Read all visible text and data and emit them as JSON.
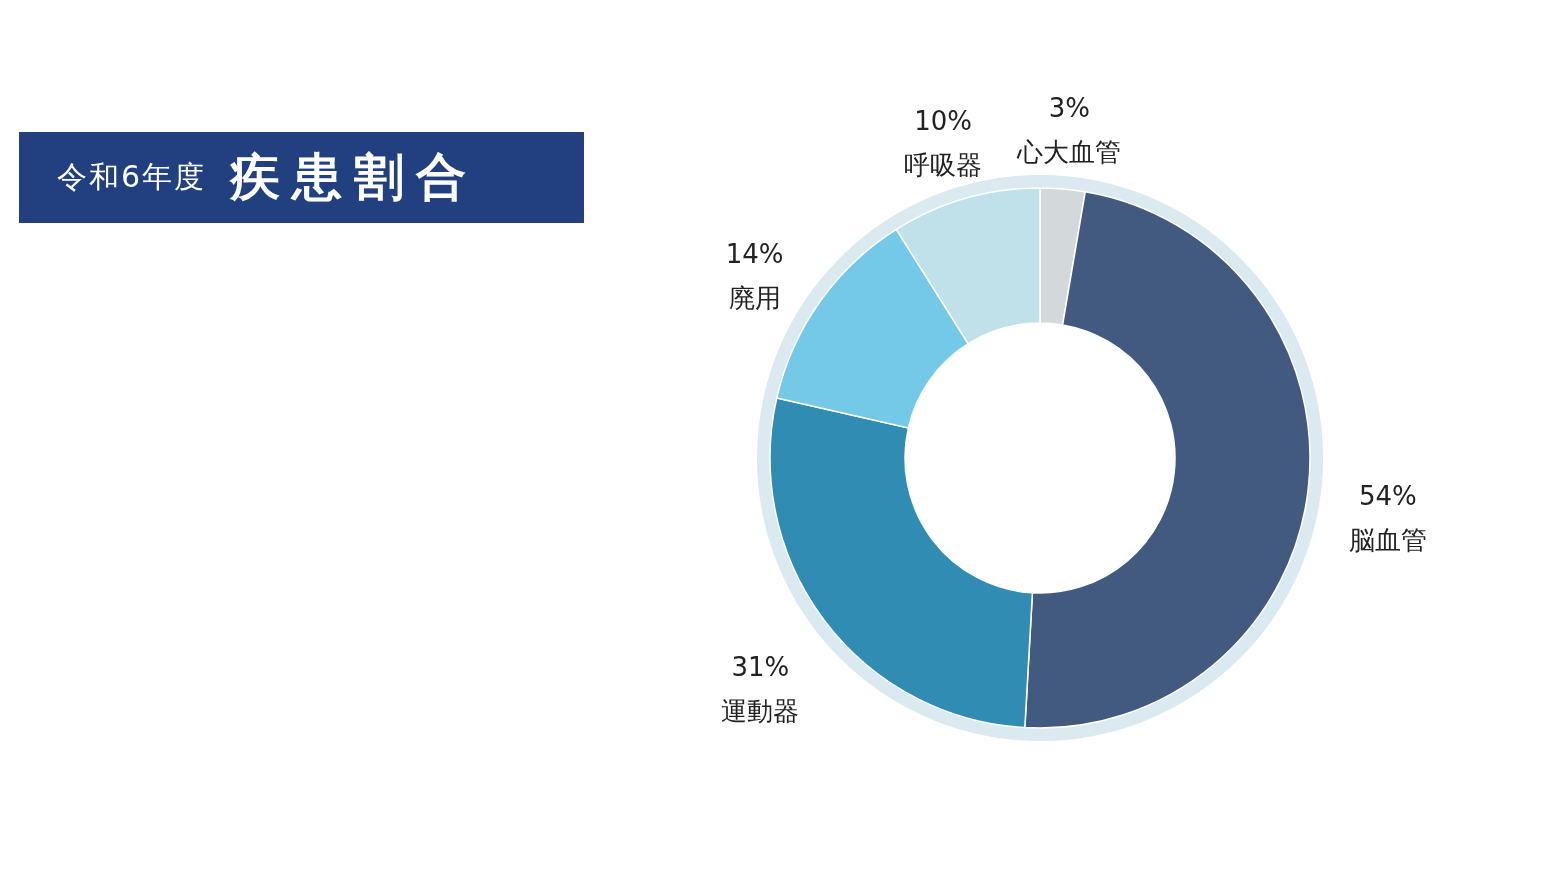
{
  "chart_data": {
    "type": "donut",
    "title": "令和6年度",
    "subtitle": "疾患割合",
    "categories": [
      "心大血管",
      "脳血管",
      "運動器",
      "廃用",
      "呼吸器"
    ],
    "values": [
      3,
      54,
      31,
      14,
      10
    ],
    "value_labels": [
      "3%",
      "54%",
      "31%",
      "14%",
      "10%"
    ],
    "colors": [
      "#d3d9db",
      "#435a80",
      "#318cb3",
      "#74c9e8",
      "#c0e0ea"
    ]
  }
}
